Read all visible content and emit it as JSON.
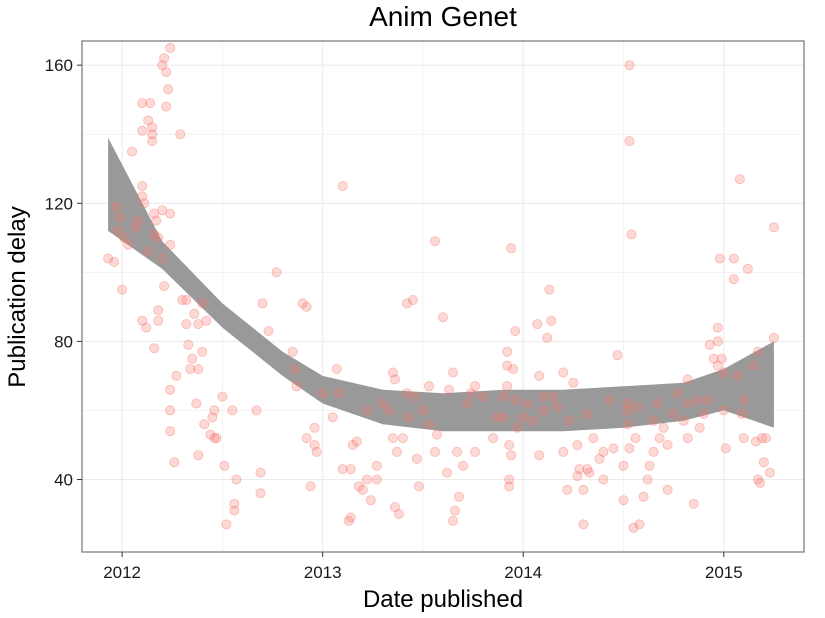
{
  "chart_data": {
    "type": "scatter",
    "title": "Anim Genet",
    "xlabel": "Date published",
    "ylabel": "Publication delay",
    "xlim": [
      2011.8,
      2015.4
    ],
    "ylim": [
      19,
      167
    ],
    "xticks": [
      2012,
      2013,
      2014,
      2015
    ],
    "xtick_labels": [
      "2012",
      "2013",
      "2014",
      "2015"
    ],
    "yticks": [
      40,
      80,
      120,
      160
    ],
    "ytick_labels": [
      "40",
      "80",
      "120",
      "160"
    ],
    "grid": true,
    "colors": {
      "points": "#f8766d",
      "band": "#999999",
      "axis": "#7f7f7f",
      "grid": "#ebebeb"
    },
    "smooth_band": {
      "x": [
        2011.93,
        2012.2,
        2012.5,
        2012.8,
        2013.0,
        2013.3,
        2013.6,
        2013.9,
        2014.2,
        2014.5,
        2014.8,
        2015.0,
        2015.25
      ],
      "lower": [
        112,
        101,
        84,
        70,
        62,
        56,
        54,
        54,
        54,
        55,
        57,
        60,
        55
      ],
      "upper": [
        139,
        109,
        91,
        77,
        70,
        66,
        65,
        66,
        66,
        67,
        68,
        72,
        80
      ]
    },
    "points": [
      [
        2011.93,
        104
      ],
      [
        2011.96,
        103
      ],
      [
        2011.97,
        119
      ],
      [
        2011.98,
        112
      ],
      [
        2011.99,
        116
      ],
      [
        2012.0,
        95
      ],
      [
        2012.01,
        110
      ],
      [
        2012.03,
        108
      ],
      [
        2012.05,
        135
      ],
      [
        2012.07,
        113
      ],
      [
        2012.08,
        115
      ],
      [
        2012.1,
        141
      ],
      [
        2012.1,
        149
      ],
      [
        2012.1,
        125
      ],
      [
        2012.1,
        122
      ],
      [
        2012.11,
        120
      ],
      [
        2012.1,
        86
      ],
      [
        2012.12,
        84
      ],
      [
        2012.13,
        106
      ],
      [
        2012.13,
        144
      ],
      [
        2012.14,
        149
      ],
      [
        2012.15,
        138
      ],
      [
        2012.15,
        140
      ],
      [
        2012.15,
        142
      ],
      [
        2012.16,
        117
      ],
      [
        2012.16,
        111
      ],
      [
        2012.16,
        78
      ],
      [
        2012.17,
        115
      ],
      [
        2012.18,
        110
      ],
      [
        2012.18,
        89
      ],
      [
        2012.18,
        86
      ],
      [
        2012.2,
        160
      ],
      [
        2012.2,
        118
      ],
      [
        2012.2,
        104
      ],
      [
        2012.21,
        96
      ],
      [
        2012.21,
        162
      ],
      [
        2012.22,
        158
      ],
      [
        2012.22,
        148
      ],
      [
        2012.23,
        153
      ],
      [
        2012.24,
        165
      ],
      [
        2012.24,
        117
      ],
      [
        2012.24,
        108
      ],
      [
        2012.24,
        66
      ],
      [
        2012.24,
        54
      ],
      [
        2012.24,
        60
      ],
      [
        2012.26,
        45
      ],
      [
        2012.27,
        70
      ],
      [
        2012.29,
        140
      ],
      [
        2012.3,
        92
      ],
      [
        2012.32,
        92
      ],
      [
        2012.32,
        85
      ],
      [
        2012.33,
        79
      ],
      [
        2012.34,
        72
      ],
      [
        2012.35,
        75
      ],
      [
        2012.36,
        88
      ],
      [
        2012.37,
        62
      ],
      [
        2012.38,
        47
      ],
      [
        2012.38,
        72
      ],
      [
        2012.38,
        85
      ],
      [
        2012.4,
        91
      ],
      [
        2012.4,
        77
      ],
      [
        2012.41,
        56
      ],
      [
        2012.42,
        86
      ],
      [
        2012.44,
        53
      ],
      [
        2012.45,
        58
      ],
      [
        2012.46,
        60
      ],
      [
        2012.46,
        52
      ],
      [
        2012.47,
        52
      ],
      [
        2012.5,
        64
      ],
      [
        2012.51,
        44
      ],
      [
        2012.52,
        27
      ],
      [
        2012.55,
        60
      ],
      [
        2012.56,
        33
      ],
      [
        2012.56,
        31
      ],
      [
        2012.57,
        40
      ],
      [
        2012.67,
        60
      ],
      [
        2012.69,
        42
      ],
      [
        2012.69,
        36
      ],
      [
        2012.7,
        91
      ],
      [
        2012.73,
        83
      ],
      [
        2012.77,
        100
      ],
      [
        2012.85,
        77
      ],
      [
        2012.86,
        72
      ],
      [
        2012.87,
        67
      ],
      [
        2012.9,
        91
      ],
      [
        2012.92,
        90
      ],
      [
        2012.92,
        52
      ],
      [
        2012.94,
        38
      ],
      [
        2012.96,
        50
      ],
      [
        2012.96,
        55
      ],
      [
        2012.97,
        48
      ],
      [
        2013.0,
        65
      ],
      [
        2013.05,
        58
      ],
      [
        2013.07,
        72
      ],
      [
        2013.08,
        65
      ],
      [
        2013.1,
        43
      ],
      [
        2013.1,
        125
      ],
      [
        2013.13,
        28
      ],
      [
        2013.14,
        29
      ],
      [
        2013.14,
        43
      ],
      [
        2013.15,
        50
      ],
      [
        2013.17,
        51
      ],
      [
        2013.18,
        38
      ],
      [
        2013.2,
        37
      ],
      [
        2013.22,
        40
      ],
      [
        2013.22,
        60
      ],
      [
        2013.24,
        34
      ],
      [
        2013.27,
        44
      ],
      [
        2013.27,
        40
      ],
      [
        2013.3,
        62
      ],
      [
        2013.33,
        60
      ],
      [
        2013.35,
        52
      ],
      [
        2013.35,
        71
      ],
      [
        2013.36,
        69
      ],
      [
        2013.36,
        32
      ],
      [
        2013.37,
        48
      ],
      [
        2013.38,
        30
      ],
      [
        2013.4,
        52
      ],
      [
        2013.42,
        91
      ],
      [
        2013.42,
        65
      ],
      [
        2013.43,
        58
      ],
      [
        2013.45,
        92
      ],
      [
        2013.46,
        64
      ],
      [
        2013.47,
        46
      ],
      [
        2013.48,
        38
      ],
      [
        2013.5,
        60
      ],
      [
        2013.53,
        56
      ],
      [
        2013.53,
        67
      ],
      [
        2013.56,
        109
      ],
      [
        2013.56,
        48
      ],
      [
        2013.57,
        53
      ],
      [
        2013.6,
        87
      ],
      [
        2013.62,
        42
      ],
      [
        2013.63,
        66
      ],
      [
        2013.65,
        71
      ],
      [
        2013.65,
        28
      ],
      [
        2013.66,
        31
      ],
      [
        2013.67,
        48
      ],
      [
        2013.68,
        35
      ],
      [
        2013.7,
        44
      ],
      [
        2013.72,
        62
      ],
      [
        2013.74,
        65
      ],
      [
        2013.76,
        48
      ],
      [
        2013.76,
        67
      ],
      [
        2013.8,
        64
      ],
      [
        2013.85,
        52
      ],
      [
        2013.87,
        58
      ],
      [
        2013.9,
        58
      ],
      [
        2013.9,
        64
      ],
      [
        2013.92,
        67
      ],
      [
        2013.92,
        73
      ],
      [
        2013.92,
        77
      ],
      [
        2013.93,
        50
      ],
      [
        2013.93,
        40
      ],
      [
        2013.93,
        38
      ],
      [
        2013.94,
        107
      ],
      [
        2013.94,
        47
      ],
      [
        2013.95,
        72
      ],
      [
        2013.96,
        83
      ],
      [
        2013.96,
        63
      ],
      [
        2013.97,
        55
      ],
      [
        2014.0,
        58
      ],
      [
        2014.02,
        62
      ],
      [
        2014.05,
        57
      ],
      [
        2014.07,
        85
      ],
      [
        2014.08,
        70
      ],
      [
        2014.08,
        47
      ],
      [
        2014.1,
        64
      ],
      [
        2014.1,
        60
      ],
      [
        2014.12,
        81
      ],
      [
        2014.13,
        95
      ],
      [
        2014.14,
        86
      ],
      [
        2014.15,
        64
      ],
      [
        2014.17,
        61
      ],
      [
        2014.2,
        71
      ],
      [
        2014.2,
        48
      ],
      [
        2014.22,
        37
      ],
      [
        2014.23,
        57
      ],
      [
        2014.25,
        68
      ],
      [
        2014.27,
        50
      ],
      [
        2014.27,
        41
      ],
      [
        2014.28,
        43
      ],
      [
        2014.3,
        27
      ],
      [
        2014.3,
        37
      ],
      [
        2014.32,
        59
      ],
      [
        2014.32,
        43
      ],
      [
        2014.33,
        42
      ],
      [
        2014.35,
        52
      ],
      [
        2014.38,
        46
      ],
      [
        2014.4,
        48
      ],
      [
        2014.4,
        40
      ],
      [
        2014.43,
        63
      ],
      [
        2014.45,
        49
      ],
      [
        2014.47,
        76
      ],
      [
        2014.5,
        44
      ],
      [
        2014.5,
        34
      ],
      [
        2014.52,
        62
      ],
      [
        2014.52,
        60
      ],
      [
        2014.52,
        56
      ],
      [
        2014.53,
        49
      ],
      [
        2014.53,
        160
      ],
      [
        2014.53,
        138
      ],
      [
        2014.54,
        111
      ],
      [
        2014.55,
        26
      ],
      [
        2014.56,
        52
      ],
      [
        2014.57,
        61
      ],
      [
        2014.58,
        27
      ],
      [
        2014.6,
        35
      ],
      [
        2014.62,
        40
      ],
      [
        2014.63,
        44
      ],
      [
        2014.65,
        57
      ],
      [
        2014.65,
        48
      ],
      [
        2014.67,
        62
      ],
      [
        2014.68,
        52
      ],
      [
        2014.7,
        55
      ],
      [
        2014.72,
        50
      ],
      [
        2014.72,
        37
      ],
      [
        2014.75,
        59
      ],
      [
        2014.77,
        65
      ],
      [
        2014.8,
        57
      ],
      [
        2014.82,
        69
      ],
      [
        2014.82,
        62
      ],
      [
        2014.82,
        52
      ],
      [
        2014.85,
        33
      ],
      [
        2014.87,
        63
      ],
      [
        2014.88,
        55
      ],
      [
        2014.9,
        59
      ],
      [
        2014.92,
        63
      ],
      [
        2014.93,
        79
      ],
      [
        2014.95,
        75
      ],
      [
        2014.97,
        73
      ],
      [
        2014.97,
        80
      ],
      [
        2014.97,
        84
      ],
      [
        2014.98,
        104
      ],
      [
        2014.99,
        75
      ],
      [
        2015.0,
        71
      ],
      [
        2015.0,
        60
      ],
      [
        2015.01,
        49
      ],
      [
        2015.05,
        98
      ],
      [
        2015.05,
        104
      ],
      [
        2015.07,
        70
      ],
      [
        2015.08,
        127
      ],
      [
        2015.09,
        59
      ],
      [
        2015.1,
        63
      ],
      [
        2015.1,
        52
      ],
      [
        2015.12,
        101
      ],
      [
        2015.15,
        73
      ],
      [
        2015.16,
        51
      ],
      [
        2015.17,
        77
      ],
      [
        2015.17,
        40
      ],
      [
        2015.18,
        39
      ],
      [
        2015.19,
        52
      ],
      [
        2015.2,
        45
      ],
      [
        2015.21,
        52
      ],
      [
        2015.23,
        42
      ],
      [
        2015.25,
        81
      ],
      [
        2015.25,
        113
      ]
    ]
  }
}
